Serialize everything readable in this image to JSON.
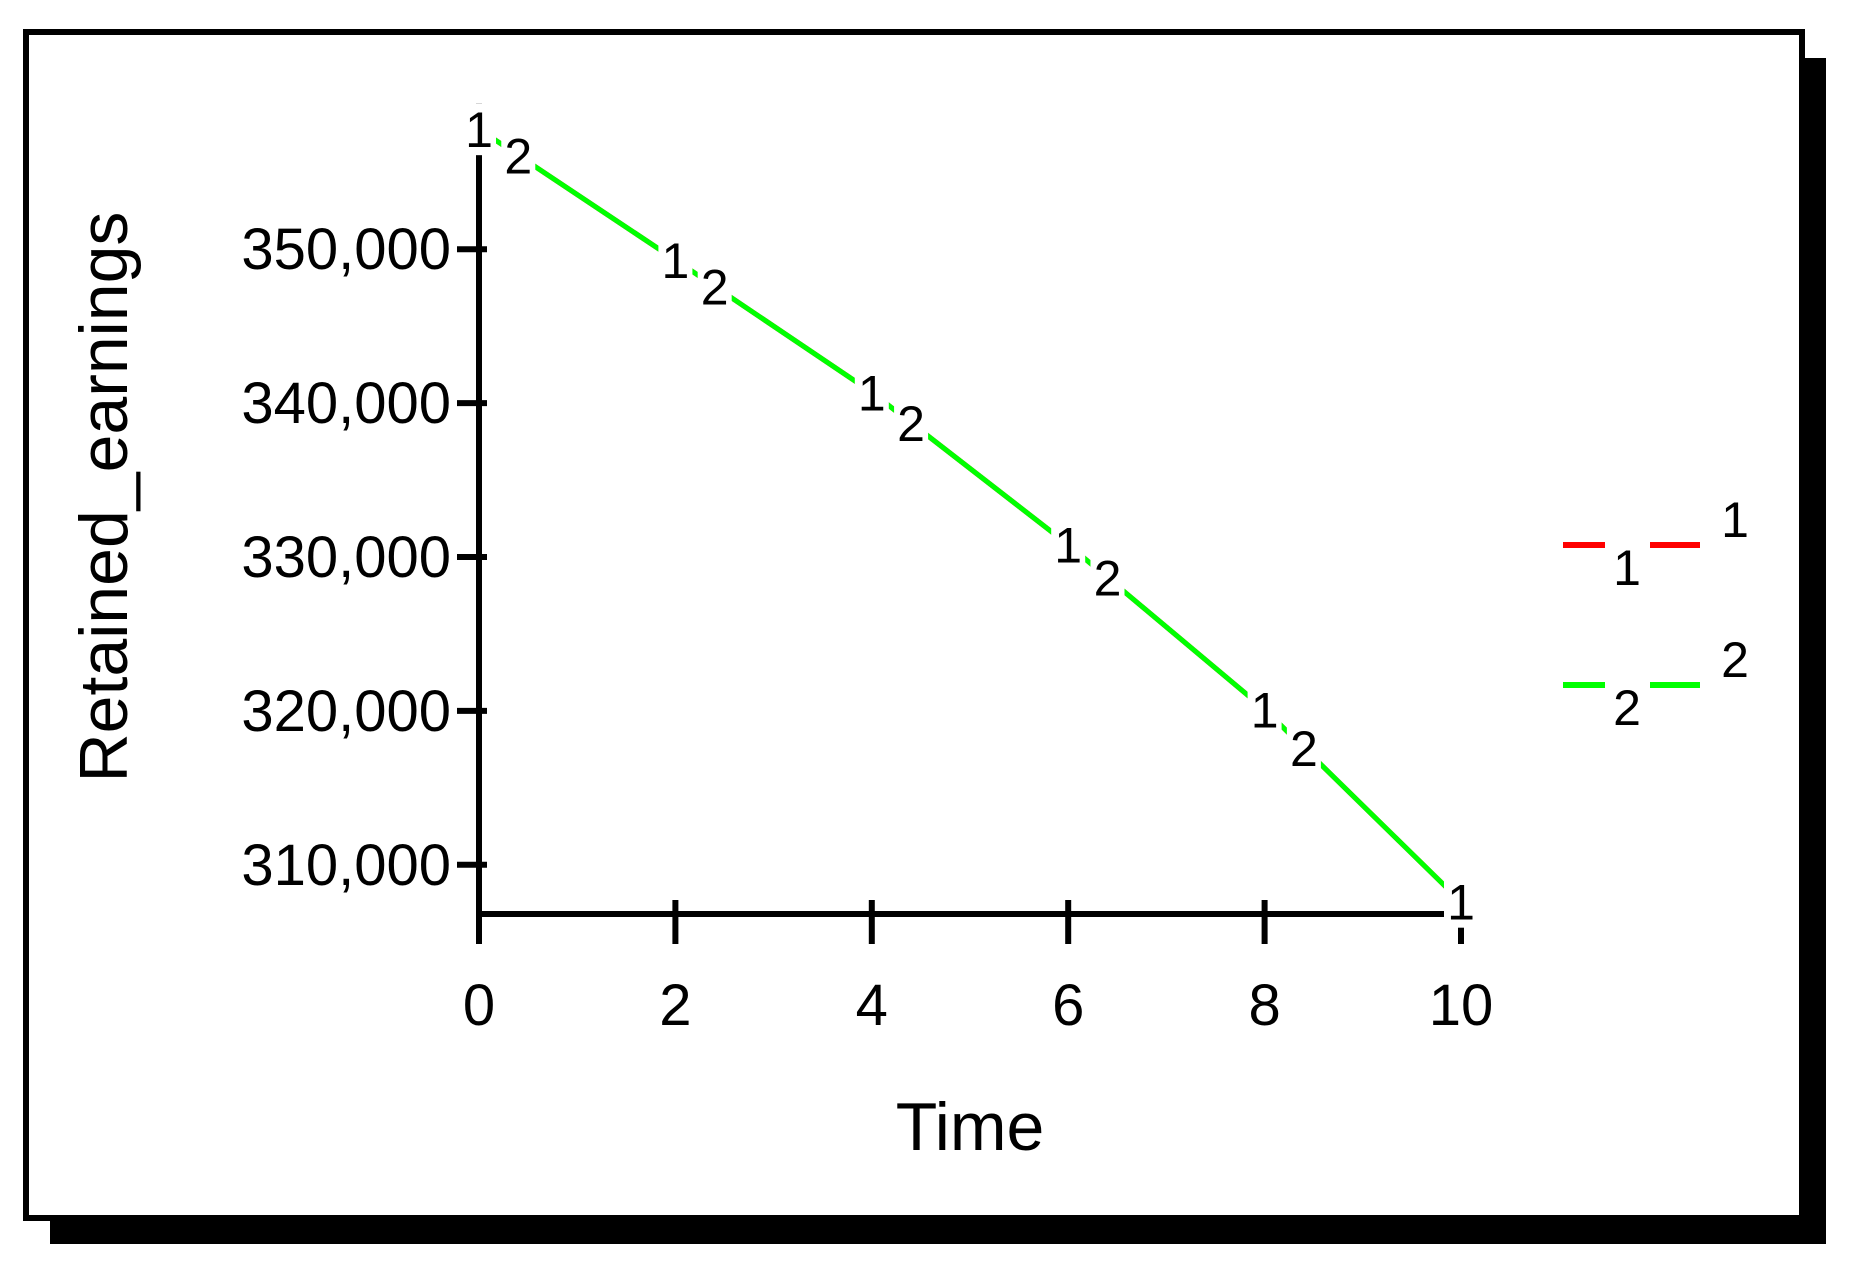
{
  "chart_data": {
    "type": "line",
    "xlabel": "Time",
    "ylabel": "Retained_earnings",
    "xlim": [
      0,
      10
    ],
    "ylim": [
      306800,
      359500
    ],
    "x_ticks": [
      0,
      2,
      4,
      6,
      8,
      10
    ],
    "x_tick_labels": [
      "0",
      "2",
      "4",
      "6",
      "8",
      "10"
    ],
    "y_ticks": [
      310000,
      320000,
      330000,
      340000,
      350000
    ],
    "y_tick_labels": [
      "310,000",
      "320,000",
      "330,000",
      "340,000",
      "350,000"
    ],
    "grid": false,
    "legend_position": "right",
    "x": [
      0,
      2,
      4,
      6,
      8,
      10
    ],
    "series": [
      {
        "name": "1",
        "marker": "1",
        "color": "#ff0000",
        "values": [
          357800,
          349300,
          340700,
          330800,
          320100,
          307600
        ]
      },
      {
        "name": "2",
        "marker": "2",
        "color": "#00ff00",
        "values": [
          357800,
          349300,
          340700,
          330800,
          320100,
          307600
        ]
      }
    ]
  }
}
